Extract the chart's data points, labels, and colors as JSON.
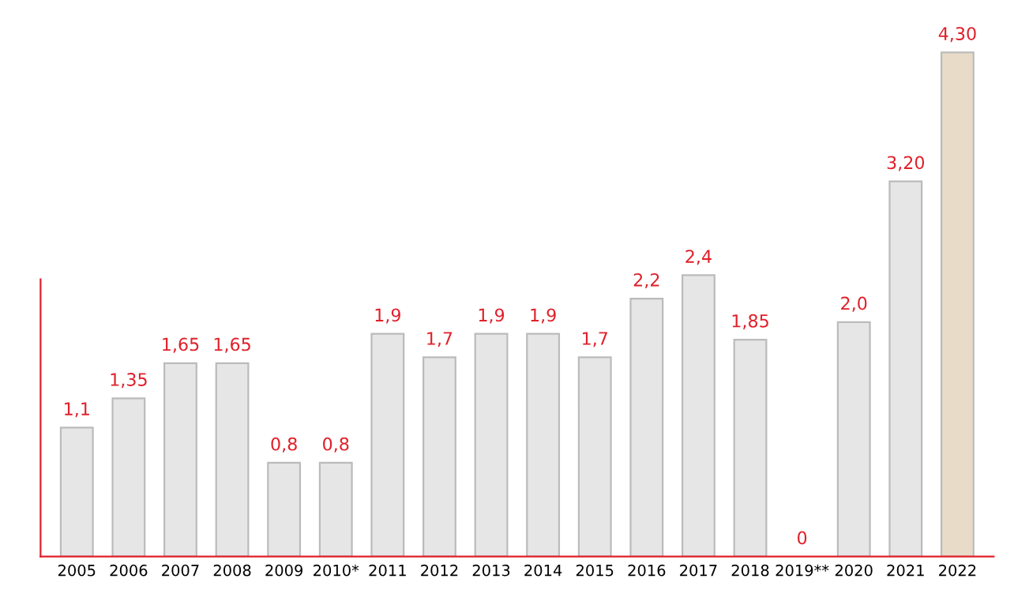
{
  "chart_data": {
    "type": "bar",
    "categories": [
      "2005",
      "2006",
      "2007",
      "2008",
      "2009",
      "2010*",
      "2011",
      "2012",
      "2013",
      "2014",
      "2015",
      "2016",
      "2017",
      "2018",
      "2019**",
      "2020",
      "2021",
      "2022"
    ],
    "values": [
      1.1,
      1.35,
      1.65,
      1.65,
      0.8,
      0.8,
      1.9,
      1.7,
      1.9,
      1.9,
      1.7,
      2.2,
      2.4,
      1.85,
      0,
      2.0,
      3.2,
      4.3
    ],
    "value_labels": [
      "1,1",
      "1,35",
      "1,65",
      "1,65",
      "0,8",
      "0,8",
      "1,9",
      "1,7",
      "1,9",
      "1,9",
      "1,7",
      "2,2",
      "2,4",
      "1,85",
      "0",
      "2,0",
      "3,20",
      "4,30"
    ],
    "colors": [
      "#e6e6e6",
      "#e6e6e6",
      "#e6e6e6",
      "#e6e6e6",
      "#e6e6e6",
      "#e6e6e6",
      "#e6e6e6",
      "#e6e6e6",
      "#e6e6e6",
      "#e6e6e6",
      "#e6e6e6",
      "#e6e6e6",
      "#e6e6e6",
      "#e6e6e6",
      "#e6e6e6",
      "#e6e6e6",
      "#e6e6e6",
      "#e8dcc8"
    ],
    "tick_labels": "x",
    "grid": false,
    "legend": false
  }
}
